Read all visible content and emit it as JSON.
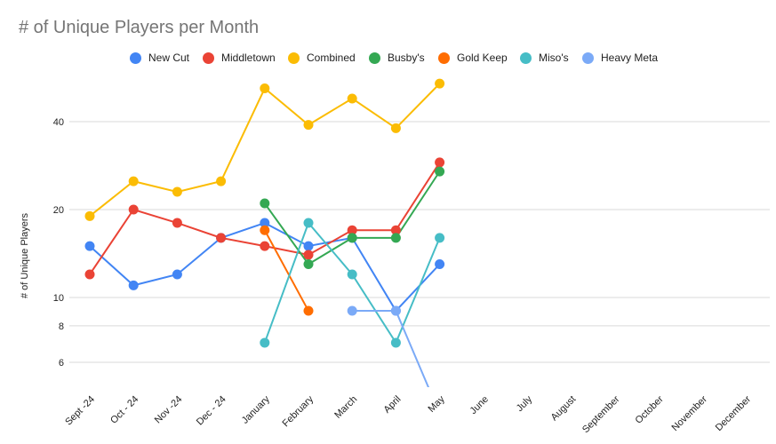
{
  "chart_data": {
    "type": "line",
    "title": "# of Unique Players per Month",
    "xlabel": "",
    "ylabel": "# of Unique Players",
    "yscale": "log",
    "ylim": [
      5,
      50
    ],
    "yticks": [
      6,
      8,
      10,
      20,
      40
    ],
    "grid": true,
    "legend_position": "top",
    "categories": [
      "Sept -24",
      "Oct - 24",
      "Nov -24",
      "Dec - 24",
      "January",
      "February",
      "March",
      "April",
      "May",
      "June",
      "July",
      "August",
      "September",
      "October",
      "November",
      "December"
    ],
    "series": [
      {
        "name": "New Cut",
        "color": "#4285f4",
        "values": [
          15,
          11,
          12,
          16,
          18,
          15,
          16,
          9,
          13,
          null,
          null,
          null,
          null,
          null,
          null,
          null
        ]
      },
      {
        "name": "Middletown",
        "color": "#ea4335",
        "values": [
          12,
          20,
          18,
          16,
          15,
          14,
          17,
          17,
          29,
          null,
          null,
          null,
          null,
          null,
          null,
          null
        ]
      },
      {
        "name": "Combined",
        "color": "#fbbc04",
        "values": [
          19,
          25,
          23,
          25,
          52,
          39,
          48,
          38,
          54,
          null,
          null,
          null,
          null,
          null,
          null,
          null
        ]
      },
      {
        "name": "Busby's",
        "color": "#34a853",
        "values": [
          null,
          null,
          null,
          null,
          21,
          13,
          16,
          16,
          27,
          null,
          null,
          null,
          null,
          null,
          null,
          null
        ]
      },
      {
        "name": "Gold Keep",
        "color": "#ff6d01",
        "values": [
          null,
          null,
          null,
          null,
          17,
          9,
          null,
          null,
          null,
          null,
          null,
          null,
          null,
          null,
          null,
          null
        ]
      },
      {
        "name": "Miso's",
        "color": "#46bdc6",
        "values": [
          null,
          null,
          null,
          null,
          7,
          18,
          12,
          7,
          16,
          null,
          null,
          null,
          null,
          null,
          null,
          null
        ]
      },
      {
        "name": "Heavy Meta",
        "color": "#7baaf7",
        "values": [
          null,
          null,
          null,
          null,
          null,
          null,
          9,
          9,
          4,
          null,
          null,
          null,
          null,
          null,
          null,
          null
        ]
      }
    ]
  }
}
